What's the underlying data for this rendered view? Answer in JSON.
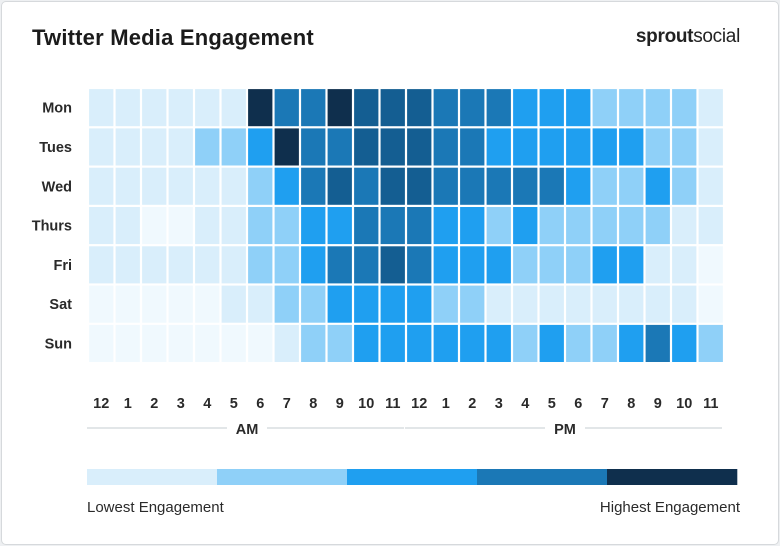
{
  "title": "Twitter Media Engagement",
  "brand": {
    "part1": "sprout",
    "part2": "social"
  },
  "colors": {
    "levels": [
      "#f0f9fe",
      "#d9eefb",
      "#8fd0f8",
      "#1f9ff0",
      "#1b78b6",
      "#145e92",
      "#0f2f4d"
    ],
    "legend": [
      "#d9eefb",
      "#8fd0f8",
      "#1f9ff0",
      "#1b78b6",
      "#0f2f4d"
    ]
  },
  "chart_data": {
    "type": "heatmap",
    "title": "Twitter Media Engagement",
    "rows": [
      "Mon",
      "Tues",
      "Wed",
      "Thurs",
      "Fri",
      "Sat",
      "Sun"
    ],
    "columns": [
      "12",
      "1",
      "2",
      "3",
      "4",
      "5",
      "6",
      "7",
      "8",
      "9",
      "10",
      "11",
      "12",
      "1",
      "2",
      "3",
      "4",
      "5",
      "6",
      "7",
      "8",
      "9",
      "10",
      "11"
    ],
    "column_groups": [
      {
        "label": "AM",
        "columns": [
          0,
          11
        ]
      },
      {
        "label": "PM",
        "columns": [
          12,
          23
        ]
      }
    ],
    "scale": "engagement level 0 (lowest) to 6 (highest)",
    "values": [
      [
        1,
        1,
        1,
        1,
        1,
        1,
        6,
        4,
        4,
        6,
        5,
        5,
        5,
        4,
        4,
        4,
        3,
        3,
        3,
        2,
        2,
        2,
        2,
        1
      ],
      [
        1,
        1,
        1,
        1,
        2,
        2,
        3,
        6,
        4,
        4,
        5,
        5,
        5,
        4,
        4,
        3,
        3,
        3,
        3,
        3,
        3,
        2,
        2,
        1
      ],
      [
        1,
        1,
        1,
        1,
        1,
        1,
        2,
        3,
        4,
        5,
        4,
        5,
        5,
        4,
        4,
        4,
        4,
        4,
        3,
        2,
        2,
        3,
        2,
        1
      ],
      [
        1,
        1,
        0,
        0,
        1,
        1,
        2,
        2,
        3,
        3,
        4,
        4,
        4,
        3,
        3,
        2,
        3,
        2,
        2,
        2,
        2,
        2,
        1,
        1
      ],
      [
        1,
        1,
        1,
        1,
        1,
        1,
        2,
        2,
        3,
        4,
        4,
        5,
        4,
        3,
        3,
        3,
        2,
        2,
        2,
        3,
        3,
        1,
        1,
        0
      ],
      [
        0,
        0,
        0,
        0,
        0,
        1,
        1,
        2,
        2,
        3,
        3,
        3,
        3,
        2,
        2,
        1,
        1,
        1,
        1,
        1,
        1,
        1,
        1,
        0
      ],
      [
        0,
        0,
        0,
        0,
        0,
        0,
        0,
        1,
        2,
        2,
        3,
        3,
        3,
        3,
        3,
        3,
        2,
        3,
        2,
        2,
        3,
        4,
        3,
        2
      ]
    ],
    "legend": {
      "low_label": "Lowest Engagement",
      "high_label": "Highest Engagement",
      "placement": "bottom"
    }
  }
}
